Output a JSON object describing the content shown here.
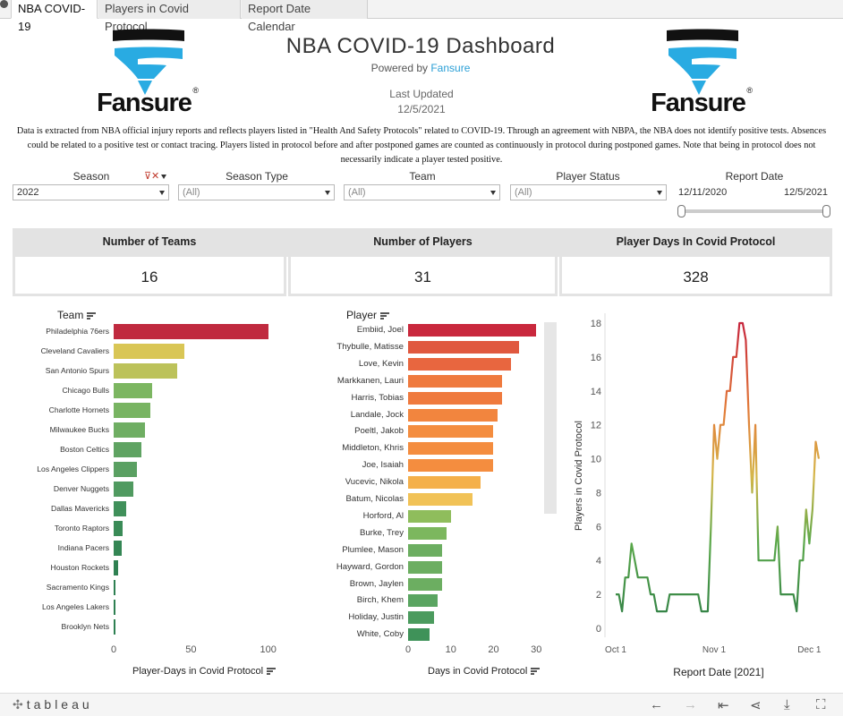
{
  "tabs": [
    "NBA COVID-19",
    "Players in Covid Protocol",
    "Report Date Calendar"
  ],
  "header": {
    "logo_text": "Fansure",
    "logo_reg": "®",
    "title": "NBA COVID-19 Dashboard",
    "powered_prefix": "Powered by",
    "powered_brand": "Fansure",
    "last_updated_label": "Last Updated",
    "last_updated_date": "12/5/2021",
    "disclaimer": "Data is extracted from NBA official injury reports and reflects players listed in \"Health And Safety Protocols\" related to COVID-19. Through an agreement with NBPA, the NBA does not identify positive tests. Absences could be related to a positive test or contact tracing. Players listed in protocol before and after postponed games are counted as continuously in protocol during postponed games. Note that being in protocol does not necessarily indicate a player tested positive.",
    "brand_colors": {
      "cyan": "#29abe2",
      "dark": "#111111"
    }
  },
  "filters": {
    "season": {
      "label": "Season",
      "value": "2022"
    },
    "season_type": {
      "label": "Season Type",
      "value": "(All)"
    },
    "team": {
      "label": "Team",
      "value": "(All)"
    },
    "player_status": {
      "label": "Player Status",
      "value": "(All)"
    },
    "report_date": {
      "label": "Report Date",
      "start": "12/11/2020",
      "end": "12/5/2021"
    }
  },
  "kpis": [
    {
      "label": "Number of Teams",
      "value": "16"
    },
    {
      "label": "Number of Players",
      "value": "31"
    },
    {
      "label": "Player Days In Covid Protocol",
      "value": "328"
    }
  ],
  "chart_data": [
    {
      "type": "bar",
      "orientation": "horizontal",
      "categories_header": "Team",
      "xlabel": "Player-Days in Covid Protocol",
      "xlim": [
        0,
        110
      ],
      "xticks": [
        "0",
        "50",
        "100"
      ],
      "categories": [
        "Philadelphia 76ers",
        "Cleveland Cavaliers",
        "San Antonio Spurs",
        "Chicago Bulls",
        "Charlotte Hornets",
        "Milwaukee Bucks",
        "Boston Celtics",
        "Los Angeles Clippers",
        "Denver Nuggets",
        "Dallas Mavericks",
        "Toronto Raptors",
        "Indiana Pacers",
        "Houston Rockets",
        "Sacramento Kings",
        "Los Angeles Lakers",
        "Brooklyn Nets"
      ],
      "values": [
        100,
        46,
        41,
        25,
        24,
        20,
        18,
        15,
        13,
        8,
        6,
        5,
        3,
        1,
        1,
        1
      ],
      "colors": [
        "#c02a3f",
        "#d9c655",
        "#bcc25a",
        "#7cb661",
        "#78b462",
        "#6fae63",
        "#5fa362",
        "#5aa062",
        "#509a60",
        "#40905a",
        "#3a8b57",
        "#348654",
        "#2f8152",
        "#2e8052",
        "#2e8052",
        "#2e8052"
      ]
    },
    {
      "type": "bar",
      "orientation": "horizontal",
      "categories_header": "Player",
      "xlabel": "Days in Covid Protocol",
      "xlim": [
        0,
        31
      ],
      "xticks": [
        "0",
        "10",
        "20",
        "30"
      ],
      "categories": [
        "Embiid, Joel",
        "Thybulle, Matisse",
        "Love, Kevin",
        "Markkanen, Lauri",
        "Harris, Tobias",
        "Landale, Jock",
        "Poeltl, Jakob",
        "Middleton, Khris",
        "Joe, Isaiah",
        "Vucevic, Nikola",
        "Batum, Nicolas",
        "Horford, Al",
        "Burke, Trey",
        "Plumlee, Mason",
        "Hayward, Gordon",
        "Brown, Jaylen",
        "Birch, Khem",
        "Holiday, Justin",
        "White, Coby"
      ],
      "values": [
        30,
        26,
        24,
        22,
        22,
        21,
        20,
        20,
        20,
        17,
        15,
        10,
        9,
        8,
        8,
        8,
        7,
        6,
        5
      ],
      "colors": [
        "#c9283d",
        "#e0583f",
        "#e8663f",
        "#ef7a3e",
        "#ef7a3e",
        "#f2853e",
        "#f48d3f",
        "#f48d3f",
        "#f48d3f",
        "#f4b04b",
        "#f1c257",
        "#8fbd5c",
        "#7cb75e",
        "#6cae61",
        "#6cae61",
        "#6cae61",
        "#5aa561",
        "#4b9b5e",
        "#3f9259"
      ]
    },
    {
      "type": "line",
      "xlabel": "Report Date [2021]",
      "ylabel": "Players in Covid Protocol",
      "ylim": [
        0,
        19
      ],
      "yticks": [
        "0",
        "2",
        "4",
        "6",
        "8",
        "10",
        "12",
        "14",
        "16",
        "18"
      ],
      "xticks": [
        {
          "label": "Oct 1",
          "day": 0
        },
        {
          "label": "Nov 1",
          "day": 31
        },
        {
          "label": "Dec 1",
          "day": 61
        }
      ],
      "points": [
        [
          0,
          2
        ],
        [
          1,
          2
        ],
        [
          2,
          1
        ],
        [
          3,
          3
        ],
        [
          4,
          3
        ],
        [
          5,
          5
        ],
        [
          6,
          4
        ],
        [
          7,
          3
        ],
        [
          8,
          3
        ],
        [
          9,
          3
        ],
        [
          10,
          3
        ],
        [
          11,
          2
        ],
        [
          12,
          2
        ],
        [
          13,
          1
        ],
        [
          14,
          1
        ],
        [
          15,
          1
        ],
        [
          16,
          1
        ],
        [
          17,
          2
        ],
        [
          18,
          2
        ],
        [
          19,
          2
        ],
        [
          20,
          2
        ],
        [
          21,
          2
        ],
        [
          22,
          2
        ],
        [
          23,
          2
        ],
        [
          24,
          2
        ],
        [
          25,
          2
        ],
        [
          26,
          2
        ],
        [
          27,
          1
        ],
        [
          28,
          1
        ],
        [
          29,
          1
        ],
        [
          30,
          6
        ],
        [
          31,
          12
        ],
        [
          32,
          10
        ],
        [
          33,
          12
        ],
        [
          34,
          12
        ],
        [
          35,
          14
        ],
        [
          36,
          14
        ],
        [
          37,
          16
        ],
        [
          38,
          16
        ],
        [
          39,
          18
        ],
        [
          40,
          18
        ],
        [
          41,
          17
        ],
        [
          42,
          12
        ],
        [
          43,
          8
        ],
        [
          44,
          12
        ],
        [
          45,
          4
        ],
        [
          46,
          4
        ],
        [
          47,
          4
        ],
        [
          48,
          4
        ],
        [
          49,
          4
        ],
        [
          50,
          4
        ],
        [
          51,
          6
        ],
        [
          52,
          2
        ],
        [
          53,
          2
        ],
        [
          54,
          2
        ],
        [
          55,
          2
        ],
        [
          56,
          2
        ],
        [
          57,
          1
        ],
        [
          58,
          4
        ],
        [
          59,
          4
        ],
        [
          60,
          7
        ],
        [
          61,
          5
        ],
        [
          62,
          7
        ],
        [
          63,
          11
        ],
        [
          64,
          10
        ]
      ]
    }
  ]
}
